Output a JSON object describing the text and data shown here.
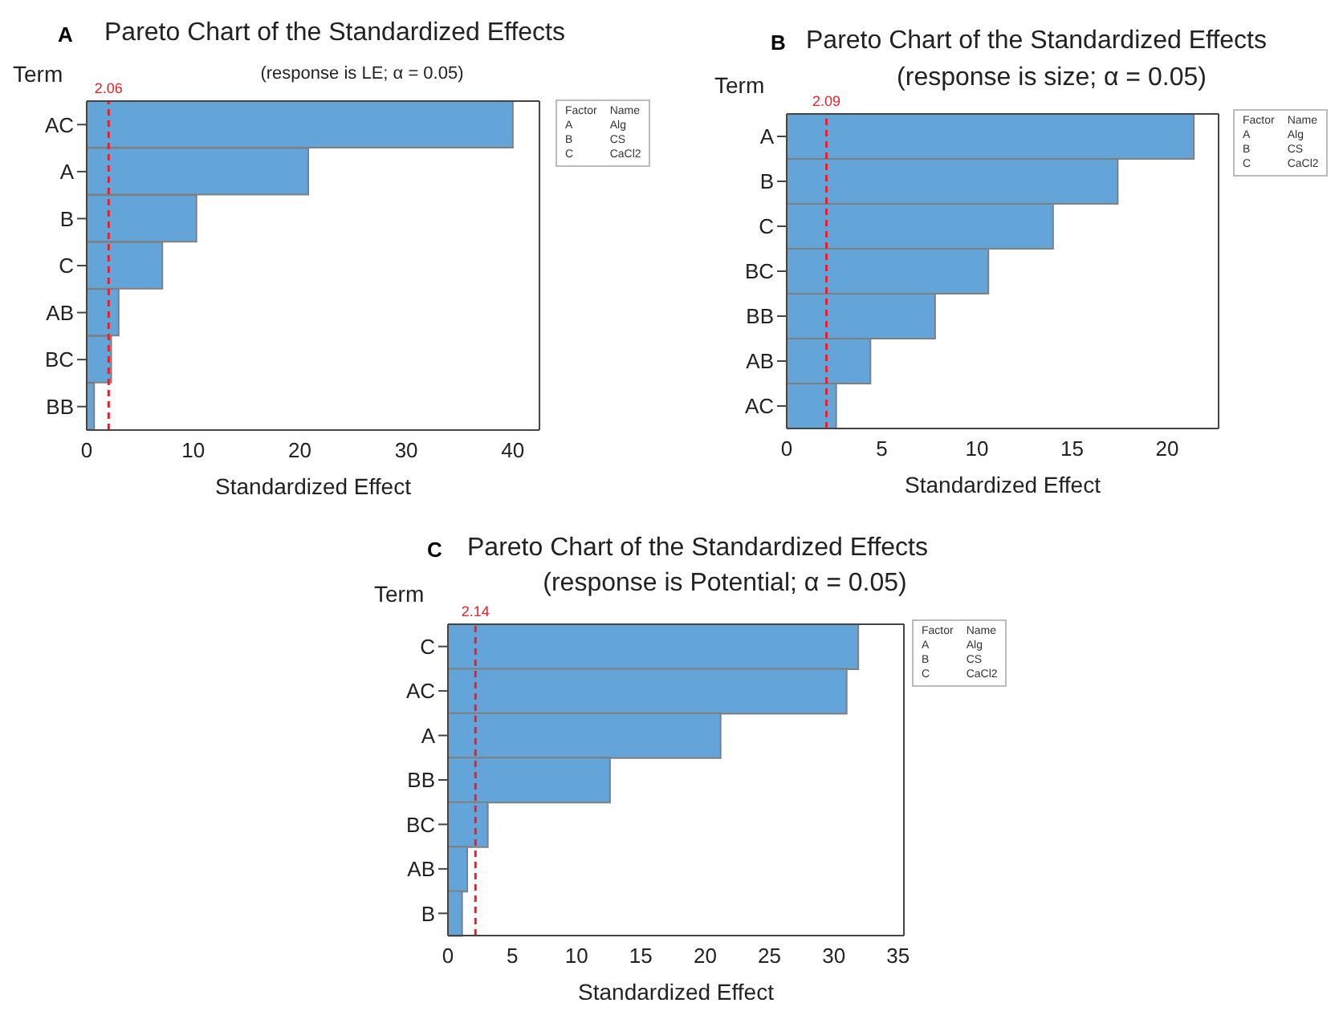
{
  "chart_data": [
    {
      "type": "bar",
      "orientation": "horizontal",
      "title": "Pareto Chart of the Standardized Effects",
      "subtitle": "(response is LE; α = 0.05)",
      "xlabel": "Standardized Effect",
      "ylabel": "Term",
      "categories": [
        "AC",
        "A",
        "B",
        "C",
        "AB",
        "BC",
        "BB"
      ],
      "values": [
        40.0,
        20.8,
        10.3,
        7.1,
        3.0,
        2.3,
        0.7
      ],
      "color": "#64a5d9",
      "xlim": [
        0,
        42.5
      ],
      "xticks": [
        0,
        10,
        20,
        30,
        40
      ],
      "grid": false,
      "legend": false,
      "ref_lines": [
        {
          "axis": "x",
          "value": 2.06,
          "label": "2.06",
          "color": "#e8202a",
          "line_style": "dashed"
        }
      ],
      "annotations": [
        "A",
        "Factor",
        "Name",
        "A",
        "Alg",
        "B",
        "CS",
        "C",
        "CaCl2"
      ]
    },
    {
      "type": "bar",
      "orientation": "horizontal",
      "title": "Pareto Chart of the Standardized Effects",
      "subtitle": "(response is size; α = 0.05)",
      "xlabel": "Standardized Effect",
      "ylabel": "Term",
      "categories": [
        "A",
        "B",
        "C",
        "BC",
        "BB",
        "AB",
        "AC"
      ],
      "values": [
        21.4,
        17.4,
        14.0,
        10.6,
        7.8,
        4.4,
        2.6
      ],
      "color": "#64a5d9",
      "xlim": [
        0,
        22.7
      ],
      "xticks": [
        0,
        5,
        10,
        15,
        20
      ],
      "grid": false,
      "legend": false,
      "ref_lines": [
        {
          "axis": "x",
          "value": 2.09,
          "label": "2.09",
          "color": "#e8202a",
          "line_style": "dashed"
        }
      ],
      "annotations": [
        "B",
        "Factor",
        "Name",
        "A",
        "Alg",
        "B",
        "CS",
        "C",
        "CaCl2"
      ]
    },
    {
      "type": "bar",
      "orientation": "horizontal",
      "title": "Pareto Chart of the Standardized Effects",
      "subtitle": "(response is Potential; α = 0.05)",
      "xlabel": "Standardized Effect",
      "ylabel": "Term",
      "categories": [
        "C",
        "AC",
        "A",
        "BB",
        "BC",
        "AB",
        "B"
      ],
      "values": [
        31.9,
        31.0,
        21.2,
        12.6,
        3.1,
        1.5,
        1.1
      ],
      "color": "#64a5d9",
      "xlim": [
        0,
        35.45
      ],
      "xticks": [
        0,
        5,
        10,
        15,
        20,
        25,
        30,
        35
      ],
      "grid": false,
      "legend": false,
      "ref_lines": [
        {
          "axis": "x",
          "value": 2.14,
          "label": "2.14",
          "color": "#e8202a",
          "line_style": "dashed"
        }
      ],
      "annotations": [
        "C",
        "Factor",
        "Name",
        "A",
        "Alg",
        "B",
        "CS",
        "C",
        "CaCl2"
      ]
    }
  ]
}
